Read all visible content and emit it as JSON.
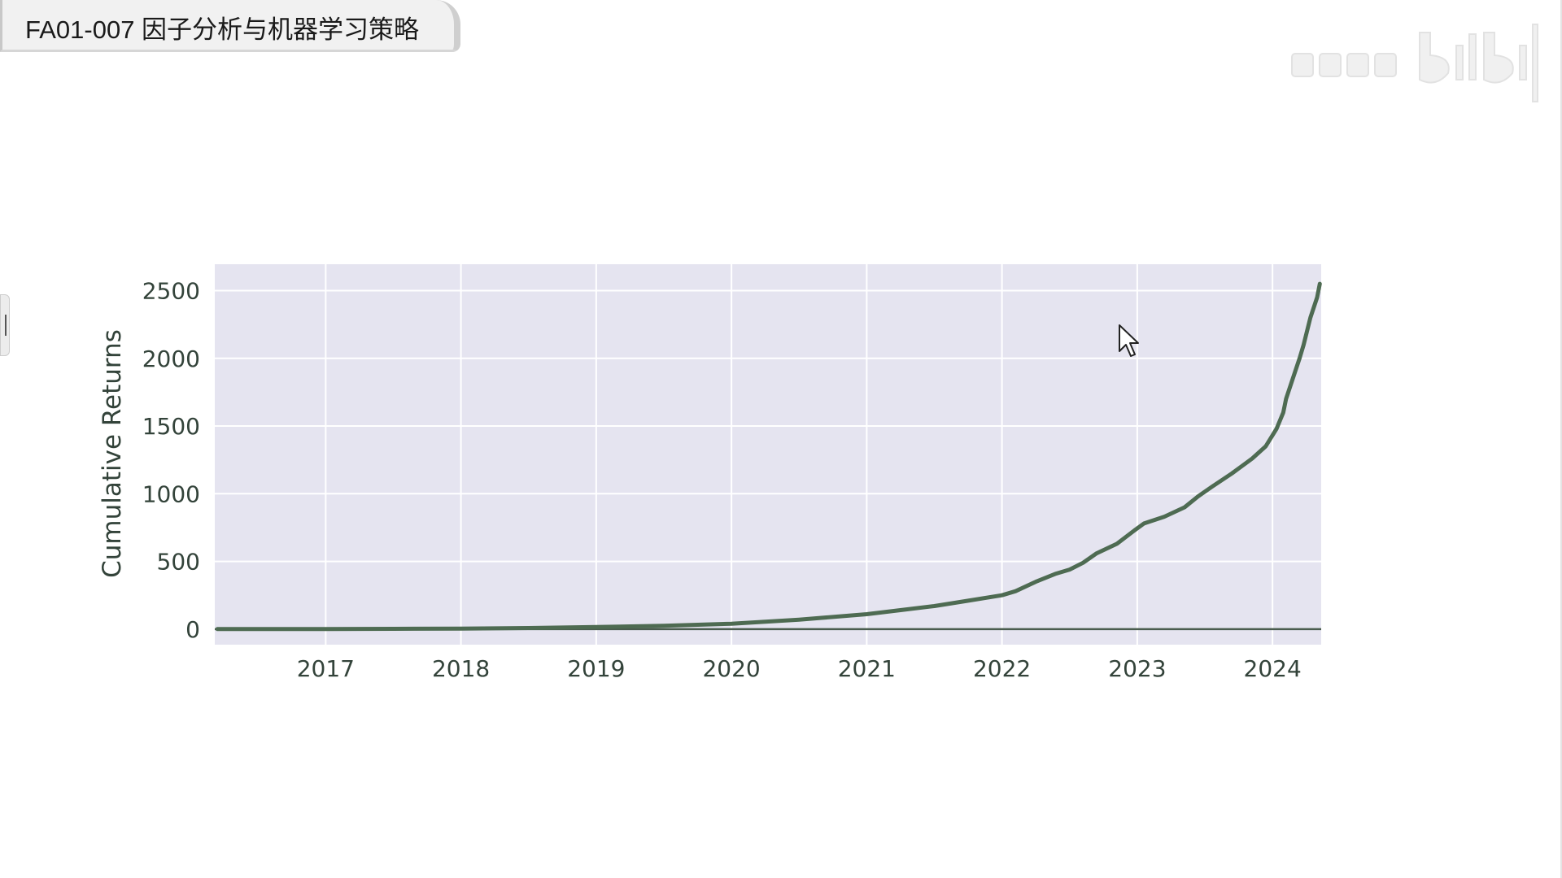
{
  "title_tab": {
    "text": "FA01-007 因子分析与机器学习策略"
  },
  "watermark": {
    "icon": "bilibili-logo-watermark"
  },
  "colors": {
    "plot_background": "#e5e4f0",
    "grid": "#ffffff",
    "line": "#4e6b52",
    "text": "#33433a",
    "zero_line": "#4a5c4e"
  },
  "chart_data": {
    "type": "line",
    "ylabel": "Cumulative Returns",
    "xlabel": "",
    "title": "",
    "x_ticks": [
      "2017",
      "2018",
      "2019",
      "2020",
      "2021",
      "2022",
      "2023",
      "2024"
    ],
    "y_ticks": [
      "0",
      "500",
      "1000",
      "1500",
      "2000",
      "2500"
    ],
    "xlim": [
      2016.18,
      2024.36
    ],
    "ylim": [
      -115,
      2695
    ],
    "grid": true,
    "legend": "none",
    "series": [
      {
        "x": [
          2016.2,
          2016.5,
          2017.0,
          2017.5,
          2018.0,
          2018.5,
          2019.0,
          2019.5,
          2019.75,
          2020.0,
          2020.25,
          2020.5,
          2020.75,
          2021.0,
          2021.25,
          2021.5,
          2021.75,
          2022.0,
          2022.1,
          2022.25,
          2022.4,
          2022.5,
          2022.6,
          2022.7,
          2022.85,
          2022.98,
          2023.05,
          2023.2,
          2023.35,
          2023.45,
          2023.55,
          2023.7,
          2023.85,
          2023.95,
          2024.03,
          2024.08,
          2024.1,
          2024.15,
          2024.2,
          2024.23,
          2024.28,
          2024.33,
          2024.35
        ],
        "y": [
          0,
          0,
          0,
          2,
          4,
          8,
          15,
          25,
          32,
          40,
          55,
          70,
          90,
          110,
          140,
          170,
          210,
          250,
          280,
          350,
          410,
          440,
          490,
          560,
          630,
          730,
          780,
          830,
          900,
          980,
          1050,
          1150,
          1260,
          1350,
          1480,
          1600,
          1700,
          1850,
          2000,
          2100,
          2300,
          2450,
          2550
        ]
      }
    ]
  }
}
